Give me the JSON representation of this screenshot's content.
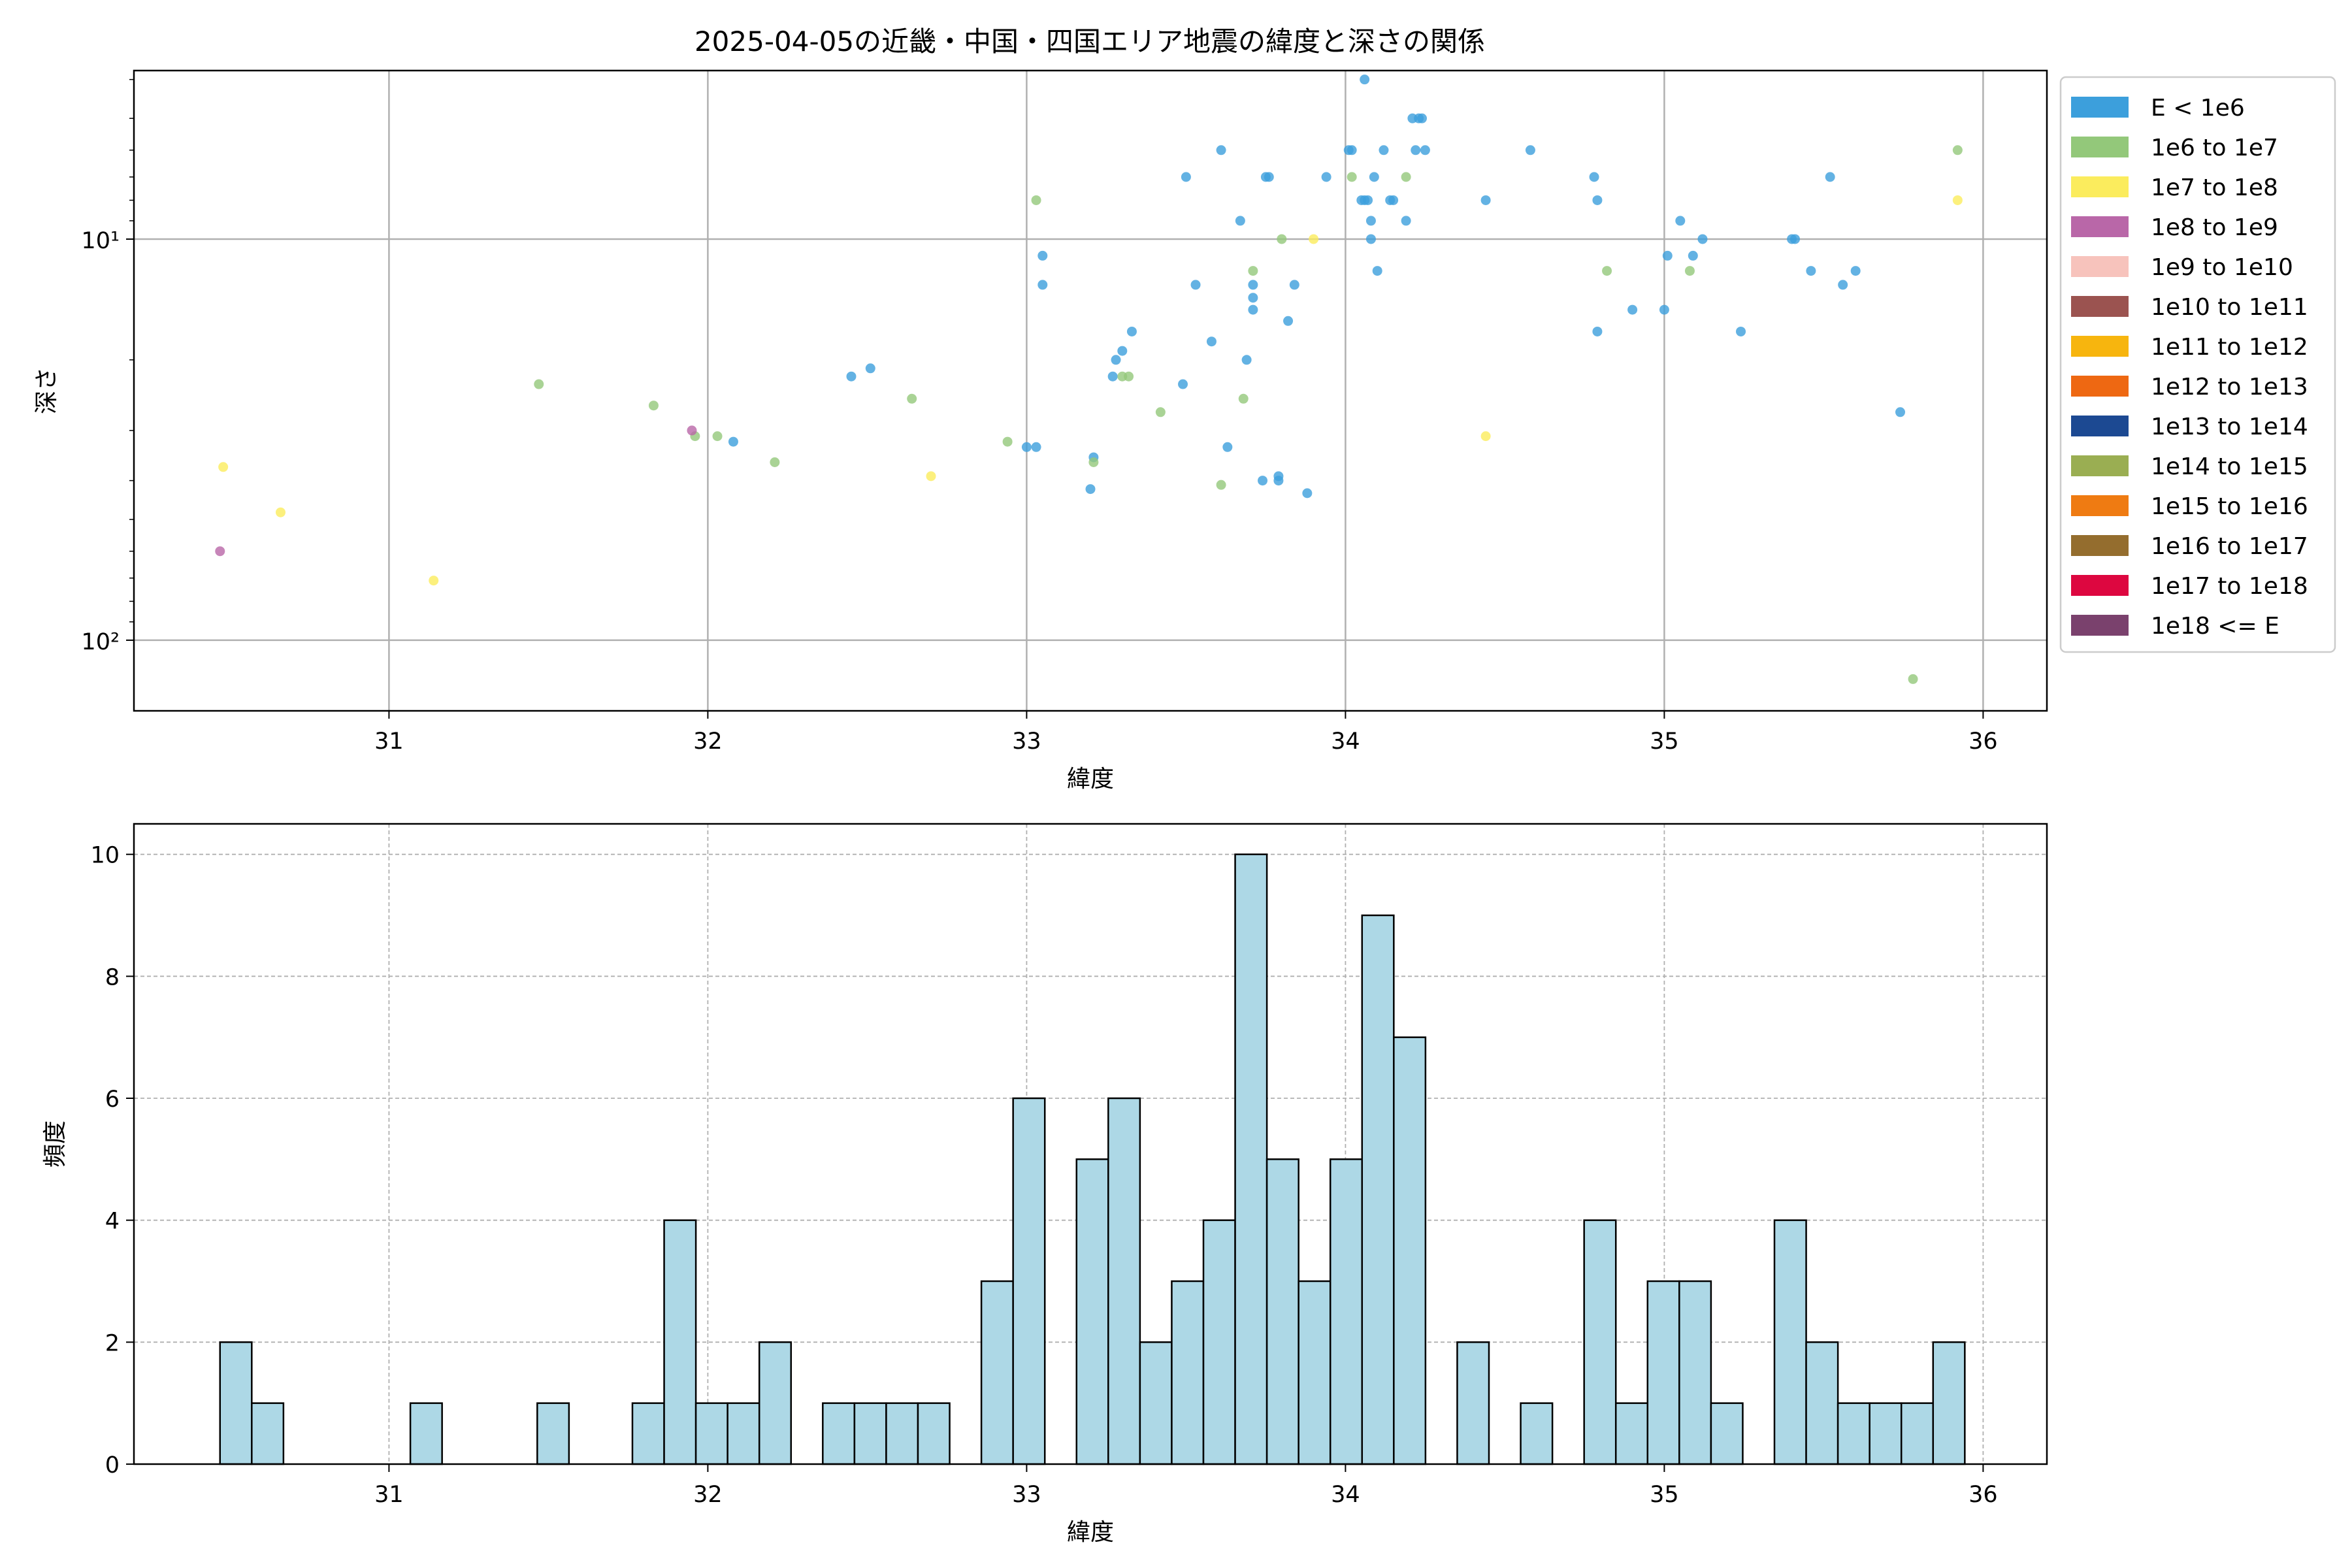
{
  "figure": {
    "title": "2025-04-05の近畿・中国・四国エリア地震の緯度と深さの関係"
  },
  "chart_data": [
    {
      "type": "scatter",
      "title": "2025-04-05の近畿・中国・四国エリア地震の緯度と深さの関係",
      "xlabel": "緯度",
      "ylabel": "深さ",
      "xlim": [
        30.2,
        36.2
      ],
      "ylim": [
        150,
        3.8
      ],
      "yscale": "log",
      "yaxis_inverted": true,
      "grid": true,
      "x_ticks": [
        31,
        32,
        33,
        34,
        35,
        36
      ],
      "x_tick_labels": [
        "31",
        "32",
        "33",
        "34",
        "35",
        "36"
      ],
      "y_ticks": [
        10,
        100
      ],
      "y_tick_labels": [
        "10¹",
        "10²"
      ],
      "legend_position": "outside-right",
      "legend": [
        {
          "label": "E < 1e6",
          "color": "#3c9fdc"
        },
        {
          "label": "1e6 to 1e7",
          "color": "#93c87a"
        },
        {
          "label": "1e7 to 1e8",
          "color": "#fbec5d"
        },
        {
          "label": "1e8 to 1e9",
          "color": "#b967a8"
        },
        {
          "label": "1e9 to 1e10",
          "color": "#f7c3bc"
        },
        {
          "label": "1e10 to 1e11",
          "color": "#9b5350"
        },
        {
          "label": "1e11 to 1e12",
          "color": "#f7b50e"
        },
        {
          "label": "1e12 to 1e13",
          "color": "#ee6812"
        },
        {
          "label": "1e13 to 1e14",
          "color": "#1c4992"
        },
        {
          "label": "1e14 to 1e15",
          "color": "#9aae52"
        },
        {
          "label": "1e15 to 1e16",
          "color": "#ef7b12"
        },
        {
          "label": "1e16 to 1e17",
          "color": "#946d2e"
        },
        {
          "label": "1e17 to 1e18",
          "color": "#dd0740"
        },
        {
          "label": "1e18 <= E",
          "color": "#7a416d"
        }
      ],
      "series": [
        {
          "name": "E < 1e6",
          "points": [
            [
              32.45,
              22
            ],
            [
              32.51,
              21
            ],
            [
              32.08,
              32
            ],
            [
              33.0,
              33
            ],
            [
              33.03,
              33
            ],
            [
              33.05,
              11
            ],
            [
              33.05,
              13
            ],
            [
              33.2,
              42
            ],
            [
              33.21,
              35
            ],
            [
              33.27,
              22
            ],
            [
              33.28,
              20
            ],
            [
              33.3,
              19
            ],
            [
              33.33,
              17
            ],
            [
              33.5,
              7
            ],
            [
              33.49,
              23
            ],
            [
              33.53,
              13
            ],
            [
              33.58,
              18
            ],
            [
              33.61,
              6
            ],
            [
              33.63,
              33
            ],
            [
              33.67,
              9
            ],
            [
              33.69,
              20
            ],
            [
              33.71,
              14
            ],
            [
              33.71,
              15
            ],
            [
              33.71,
              13
            ],
            [
              33.74,
              40
            ],
            [
              33.75,
              7
            ],
            [
              33.76,
              7
            ],
            [
              33.79,
              39
            ],
            [
              33.79,
              40
            ],
            [
              33.82,
              16
            ],
            [
              33.84,
              13
            ],
            [
              33.88,
              43
            ],
            [
              33.94,
              7
            ],
            [
              34.01,
              6
            ],
            [
              34.02,
              6
            ],
            [
              34.05,
              8
            ],
            [
              34.06,
              8
            ],
            [
              34.06,
              4
            ],
            [
              34.07,
              8
            ],
            [
              34.08,
              9
            ],
            [
              34.08,
              10
            ],
            [
              34.09,
              7
            ],
            [
              34.1,
              12
            ],
            [
              34.12,
              6
            ],
            [
              34.14,
              8
            ],
            [
              34.15,
              8
            ],
            [
              34.19,
              9
            ],
            [
              34.21,
              5
            ],
            [
              34.22,
              6
            ],
            [
              34.23,
              5
            ],
            [
              34.24,
              5
            ],
            [
              34.25,
              6
            ],
            [
              34.44,
              8
            ],
            [
              34.58,
              6
            ],
            [
              34.78,
              7
            ],
            [
              34.79,
              8
            ],
            [
              34.79,
              17
            ],
            [
              34.9,
              15
            ],
            [
              35.0,
              15
            ],
            [
              35.01,
              11
            ],
            [
              35.05,
              9
            ],
            [
              35.09,
              11
            ],
            [
              35.12,
              10
            ],
            [
              35.24,
              17
            ],
            [
              35.4,
              10
            ],
            [
              35.41,
              10
            ],
            [
              35.46,
              12
            ],
            [
              35.52,
              7
            ],
            [
              35.56,
              13
            ],
            [
              35.6,
              12
            ],
            [
              35.74,
              27
            ]
          ]
        },
        {
          "name": "1e6 to 1e7",
          "points": [
            [
              31.47,
              23
            ],
            [
              31.83,
              26
            ],
            [
              31.96,
              31
            ],
            [
              32.03,
              31
            ],
            [
              32.21,
              36
            ],
            [
              32.64,
              25
            ],
            [
              32.94,
              32
            ],
            [
              33.03,
              8
            ],
            [
              33.21,
              36
            ],
            [
              33.3,
              22
            ],
            [
              33.32,
              22
            ],
            [
              33.42,
              27
            ],
            [
              33.61,
              41
            ],
            [
              33.68,
              25
            ],
            [
              33.71,
              12
            ],
            [
              33.8,
              10
            ],
            [
              34.02,
              7
            ],
            [
              34.19,
              7
            ],
            [
              34.82,
              12
            ],
            [
              35.08,
              12
            ],
            [
              35.78,
              125
            ],
            [
              35.92,
              6
            ]
          ]
        },
        {
          "name": "1e7 to 1e8",
          "points": [
            [
              30.48,
              37
            ],
            [
              30.66,
              48
            ],
            [
              31.14,
              71
            ],
            [
              32.7,
              39
            ],
            [
              33.9,
              10
            ],
            [
              34.44,
              31
            ],
            [
              35.92,
              8
            ]
          ]
        },
        {
          "name": "1e8 to 1e9",
          "points": [
            [
              30.47,
              60
            ],
            [
              31.95,
              30
            ]
          ]
        }
      ]
    },
    {
      "type": "bar",
      "subtype": "histogram",
      "xlabel": "緯度",
      "ylabel": "頻度",
      "xlim": [
        30.2,
        36.2
      ],
      "ylim": [
        0,
        10.5
      ],
      "grid": true,
      "bar_color": "#add8e6",
      "edge_color": "#000000",
      "x_ticks": [
        31,
        32,
        33,
        34,
        35,
        36
      ],
      "x_tick_labels": [
        "31",
        "32",
        "33",
        "34",
        "35",
        "36"
      ],
      "y_ticks": [
        0,
        2,
        4,
        6,
        8,
        10
      ],
      "y_tick_labels": [
        "0",
        "2",
        "4",
        "6",
        "8",
        "10"
      ],
      "bin_start": 30.47,
      "bin_width": 0.0995,
      "counts": [
        2,
        1,
        0,
        0,
        0,
        0,
        1,
        0,
        0,
        0,
        1,
        0,
        0,
        1,
        4,
        1,
        1,
        2,
        0,
        1,
        1,
        1,
        1,
        0,
        3,
        6,
        0,
        5,
        6,
        2,
        3,
        4,
        10,
        5,
        3,
        5,
        9,
        7,
        0,
        2,
        0,
        1,
        0,
        4,
        1,
        3,
        3,
        1,
        0,
        4,
        2,
        1,
        1,
        1,
        2
      ]
    }
  ]
}
